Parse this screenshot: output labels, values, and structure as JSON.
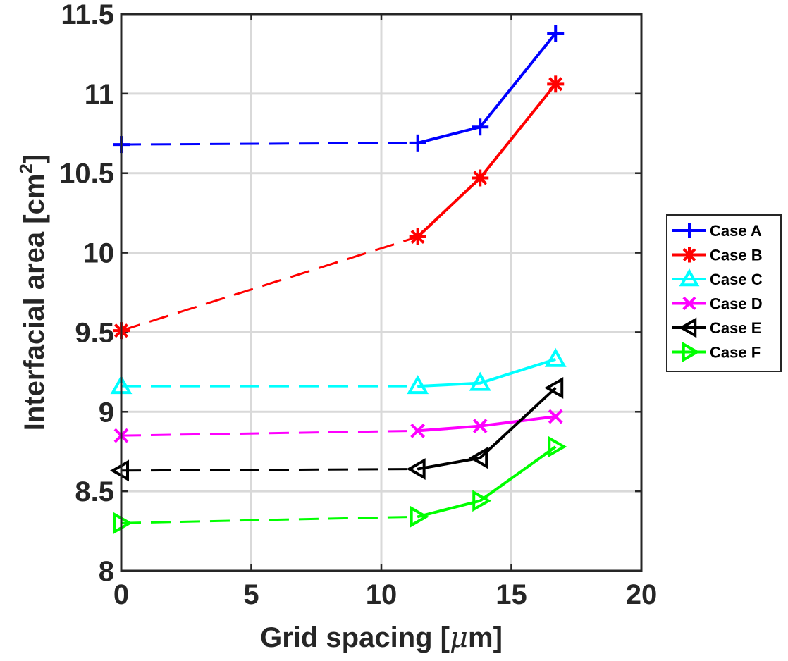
{
  "chart_data": {
    "type": "line",
    "xlabel_text": "Grid spacing [",
    "xlabel_mu": "μ",
    "xlabel_unit": "m]",
    "ylabel_text": "Interfacial area [cm",
    "ylabel_sup": "2",
    "ylabel_close": "]",
    "xlim": [
      0,
      20
    ],
    "ylim": [
      8,
      11.5
    ],
    "xticks": [
      "0",
      "5",
      "10",
      "15",
      "20"
    ],
    "yticks": [
      "8",
      "8.5",
      "9",
      "9.5",
      "10",
      "10.5",
      "11",
      "11.5"
    ],
    "grid": true,
    "legend_position": "outside-right",
    "series": [
      {
        "name": "Case A",
        "color": "#0000ff",
        "marker": "plus",
        "x": [
          0,
          11.4,
          13.8,
          16.7
        ],
        "y": [
          10.68,
          10.69,
          10.79,
          11.38
        ]
      },
      {
        "name": "Case B",
        "color": "#ff0000",
        "marker": "asterisk",
        "x": [
          0,
          11.4,
          13.8,
          16.7
        ],
        "y": [
          9.51,
          10.1,
          10.47,
          11.06
        ]
      },
      {
        "name": "Case C",
        "color": "#00ffff",
        "marker": "triangle-up",
        "x": [
          0,
          11.4,
          13.8,
          16.7
        ],
        "y": [
          9.16,
          9.16,
          9.18,
          9.33
        ]
      },
      {
        "name": "Case D",
        "color": "#ff00ff",
        "marker": "cross",
        "x": [
          0,
          11.4,
          13.8,
          16.7
        ],
        "y": [
          8.85,
          8.88,
          8.91,
          8.97
        ]
      },
      {
        "name": "Case E",
        "color": "#000000",
        "marker": "triangle-left",
        "x": [
          0,
          11.4,
          13.8,
          16.7
        ],
        "y": [
          8.63,
          8.64,
          8.71,
          9.15
        ]
      },
      {
        "name": "Case F",
        "color": "#00ff00",
        "marker": "triangle-right",
        "x": [
          0,
          11.4,
          13.8,
          16.7
        ],
        "y": [
          8.3,
          8.34,
          8.44,
          8.78
        ]
      }
    ]
  }
}
